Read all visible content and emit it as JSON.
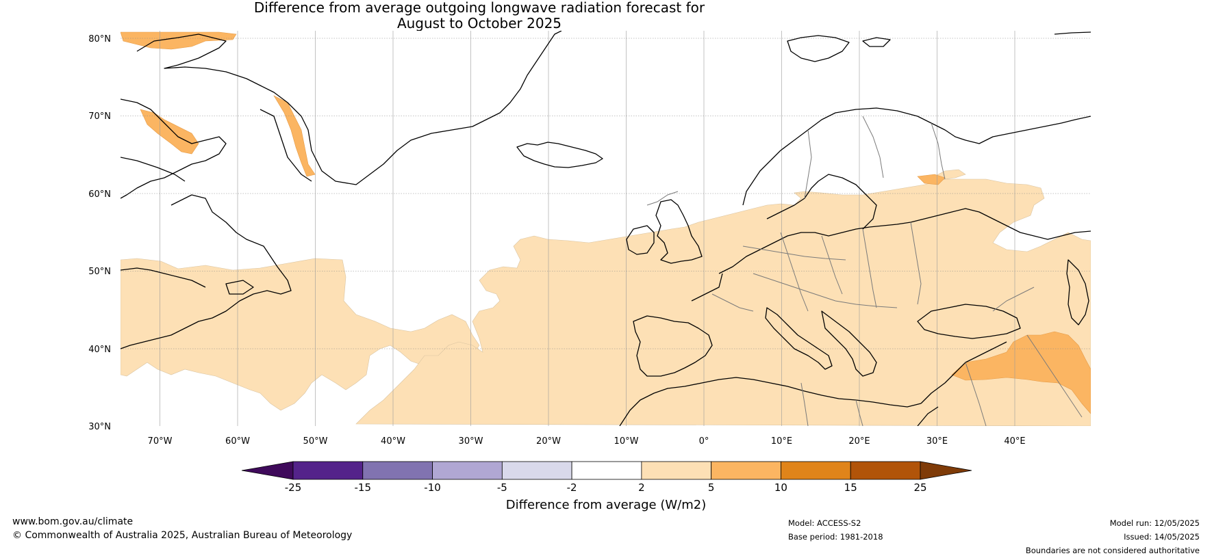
{
  "title_line1": "Difference from average outgoing longwave radiation forecast for",
  "title_line2": "August to October 2025",
  "latitude_labels": [
    "80°N",
    "70°N",
    "60°N",
    "50°N",
    "40°N",
    "30°N"
  ],
  "longitude_labels": [
    "70°W",
    "60°W",
    "50°W",
    "40°W",
    "30°W",
    "20°W",
    "10°W",
    "0°",
    "10°E",
    "20°E",
    "30°E",
    "40°E"
  ],
  "colorbar": {
    "title": "Difference from average (W/m2)",
    "tick_labels": [
      "-25",
      "-15",
      "-10",
      "-5",
      "-2",
      "2",
      "5",
      "10",
      "15",
      "25"
    ],
    "colors": [
      "#3f0a5b",
      "#54238a",
      "#8173b0",
      "#b0a7d3",
      "#d9d9eb",
      "#ffffff",
      "#fde0b5",
      "#fbb562",
      "#e0841a",
      "#b15409",
      "#7f3b08"
    ]
  },
  "footer": {
    "website": "www.bom.gov.au/climate",
    "copyright": "© Commonwealth of Australia 2025, Australian Bureau of Meteorology",
    "model": "Model: ACCESS-S2",
    "base_period": "Base period: 1981-2018",
    "model_run": "Model run: 12/05/2025",
    "issued": "Issued: 14/05/2025",
    "disclaimer": "Boundaries are not considered authoritative"
  }
}
